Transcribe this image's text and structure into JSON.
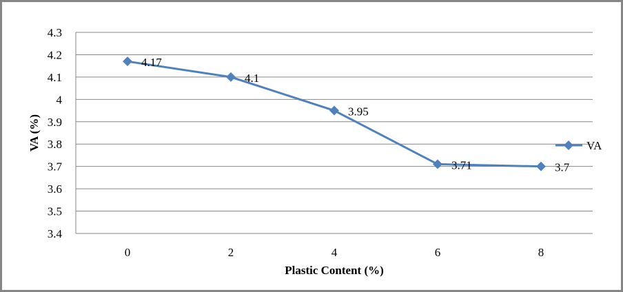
{
  "chart_data": {
    "type": "line",
    "title": "",
    "xlabel": "Plastic  Content (%)",
    "ylabel": "VA (%)",
    "categories": [
      "0",
      "2",
      "4",
      "6",
      "8"
    ],
    "series": [
      {
        "name": "VA",
        "values": [
          4.17,
          4.1,
          3.95,
          3.71,
          3.7
        ],
        "data_labels": [
          "4.17",
          "4.1",
          "3.95",
          "3.71",
          "3.7"
        ],
        "color": "#4F81BD",
        "marker": "diamond"
      }
    ],
    "ylim": [
      3.4,
      4.3
    ],
    "yticks": [
      "3.4",
      "3.5",
      "3.6",
      "3.7",
      "3.8",
      "3.9",
      "4",
      "4.1",
      "4.2",
      "4.3"
    ],
    "grid": true,
    "legend": "right"
  }
}
